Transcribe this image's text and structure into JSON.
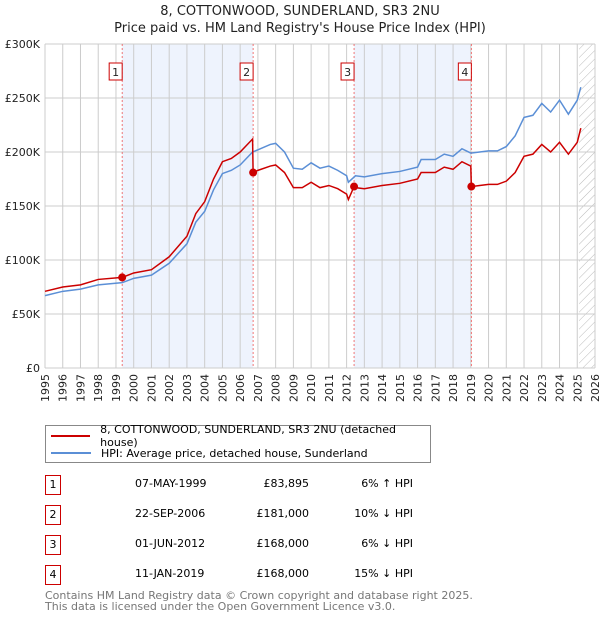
{
  "title": "8, COTTONWOOD, SUNDERLAND, SR3 2NU",
  "subtitle": "Price paid vs. HM Land Registry's House Price Index (HPI)",
  "chart_data": {
    "type": "line",
    "title": "8, COTTONWOOD, SUNDERLAND, SR3 2NU",
    "subtitle": "Price paid vs. HM Land Registry's House Price Index (HPI)",
    "xlim": [
      1995,
      2026
    ],
    "ylim": [
      0,
      300000
    ],
    "y_ticks": [
      {
        "v": 0,
        "label": "£0"
      },
      {
        "v": 50000,
        "label": "£50K"
      },
      {
        "v": 100000,
        "label": "£100K"
      },
      {
        "v": 150000,
        "label": "£150K"
      },
      {
        "v": 200000,
        "label": "£200K"
      },
      {
        "v": 250000,
        "label": "£250K"
      },
      {
        "v": 300000,
        "label": "£300K"
      }
    ],
    "x_ticks": [
      "1995",
      "1996",
      "1997",
      "1998",
      "1999",
      "2000",
      "2001",
      "2002",
      "2003",
      "2004",
      "2005",
      "2006",
      "2007",
      "2008",
      "2009",
      "2010",
      "2011",
      "2012",
      "2013",
      "2014",
      "2015",
      "2016",
      "2017",
      "2018",
      "2019",
      "2020",
      "2021",
      "2022",
      "2023",
      "2024",
      "2025",
      "2026"
    ],
    "grid": true,
    "forecast_from": 2025.1,
    "series": [
      {
        "name": "8, COTTONWOOD, SUNDERLAND, SR3 2NU (detached house)",
        "color": "#cc0000",
        "points": [
          [
            1995,
            71
          ],
          [
            1996,
            75
          ],
          [
            1997,
            77
          ],
          [
            1998,
            82
          ],
          [
            1999.35,
            83.9
          ],
          [
            2000,
            88
          ],
          [
            2001,
            91
          ],
          [
            2002,
            103
          ],
          [
            2003,
            122
          ],
          [
            2003.5,
            143
          ],
          [
            2004,
            154
          ],
          [
            2004.5,
            175
          ],
          [
            2005,
            191
          ],
          [
            2005.5,
            194
          ],
          [
            2006,
            200
          ],
          [
            2006.7,
            212
          ],
          [
            2006.73,
            181
          ],
          [
            2007,
            183
          ],
          [
            2007.7,
            187
          ],
          [
            2008,
            188
          ],
          [
            2008.5,
            181
          ],
          [
            2009,
            167
          ],
          [
            2009.5,
            167
          ],
          [
            2010,
            172
          ],
          [
            2010.5,
            167
          ],
          [
            2011,
            169
          ],
          [
            2011.5,
            166
          ],
          [
            2012,
            161
          ],
          [
            2012.1,
            156
          ],
          [
            2012.42,
            168
          ],
          [
            2012.5,
            167
          ],
          [
            2013,
            166
          ],
          [
            2014,
            169
          ],
          [
            2015,
            171
          ],
          [
            2016,
            175
          ],
          [
            2016.2,
            181
          ],
          [
            2017,
            181
          ],
          [
            2017.5,
            186
          ],
          [
            2018,
            184
          ],
          [
            2018.5,
            191
          ],
          [
            2019.0,
            187
          ],
          [
            2019.03,
            168
          ],
          [
            2019.5,
            169
          ],
          [
            2020,
            170
          ],
          [
            2020.5,
            170
          ],
          [
            2021,
            173
          ],
          [
            2021.5,
            181
          ],
          [
            2022,
            196
          ],
          [
            2022.5,
            198
          ],
          [
            2023,
            207
          ],
          [
            2023.5,
            200
          ],
          [
            2024,
            209
          ],
          [
            2024.5,
            198
          ],
          [
            2025,
            209
          ],
          [
            2025.2,
            222
          ]
        ]
      },
      {
        "name": "HPI: Average price, detached house, Sunderland",
        "color": "#5b8fd6",
        "points": [
          [
            1995,
            67
          ],
          [
            1996,
            71
          ],
          [
            1997,
            73
          ],
          [
            1998,
            77
          ],
          [
            1999.35,
            79
          ],
          [
            2000,
            83
          ],
          [
            2001,
            86
          ],
          [
            2002,
            97
          ],
          [
            2003,
            115
          ],
          [
            2003.5,
            135
          ],
          [
            2004,
            145
          ],
          [
            2004.5,
            165
          ],
          [
            2005,
            180
          ],
          [
            2005.5,
            183
          ],
          [
            2006,
            188
          ],
          [
            2006.7,
            200
          ],
          [
            2007,
            202
          ],
          [
            2007.7,
            207
          ],
          [
            2008,
            208
          ],
          [
            2008.5,
            200
          ],
          [
            2009,
            185
          ],
          [
            2009.5,
            184
          ],
          [
            2010,
            190
          ],
          [
            2010.5,
            185
          ],
          [
            2011,
            187
          ],
          [
            2011.5,
            183
          ],
          [
            2012,
            178
          ],
          [
            2012.1,
            172
          ],
          [
            2012.5,
            178
          ],
          [
            2013,
            177
          ],
          [
            2014,
            180
          ],
          [
            2015,
            182
          ],
          [
            2016,
            186
          ],
          [
            2016.2,
            193
          ],
          [
            2017,
            193
          ],
          [
            2017.5,
            198
          ],
          [
            2018,
            196
          ],
          [
            2018.5,
            203
          ],
          [
            2019,
            199
          ],
          [
            2019.5,
            200
          ],
          [
            2020,
            201
          ],
          [
            2020.5,
            201
          ],
          [
            2021,
            205
          ],
          [
            2021.5,
            215
          ],
          [
            2022,
            232
          ],
          [
            2022.5,
            234
          ],
          [
            2023,
            245
          ],
          [
            2023.5,
            237
          ],
          [
            2024,
            248
          ],
          [
            2024.5,
            235
          ],
          [
            2025,
            248
          ],
          [
            2025.2,
            260
          ]
        ]
      }
    ],
    "sales": [
      {
        "n": "1",
        "x": 1999.35,
        "price": 83895
      },
      {
        "n": "2",
        "x": 2006.73,
        "price": 181000
      },
      {
        "n": "3",
        "x": 2012.42,
        "price": 168000
      },
      {
        "n": "4",
        "x": 2019.03,
        "price": 168000
      }
    ],
    "legend_placement": "below"
  },
  "legend": {
    "price": "8, COTTONWOOD, SUNDERLAND, SR3 2NU (detached house)",
    "hpi": "HPI: Average price, detached house, Sunderland"
  },
  "transactions": [
    {
      "n": "1",
      "date": "07-MAY-1999",
      "price": "£83,895",
      "hpi": "6% ↑ HPI"
    },
    {
      "n": "2",
      "date": "22-SEP-2006",
      "price": "£181,000",
      "hpi": "10% ↓ HPI"
    },
    {
      "n": "3",
      "date": "01-JUN-2012",
      "price": "£168,000",
      "hpi": "6% ↓ HPI"
    },
    {
      "n": "4",
      "date": "11-JAN-2019",
      "price": "£168,000",
      "hpi": "15% ↓ HPI"
    }
  ],
  "footer": {
    "line1": "Contains HM Land Registry data © Crown copyright and database right 2025.",
    "line2": "This data is licensed under the Open Government Licence v3.0."
  }
}
